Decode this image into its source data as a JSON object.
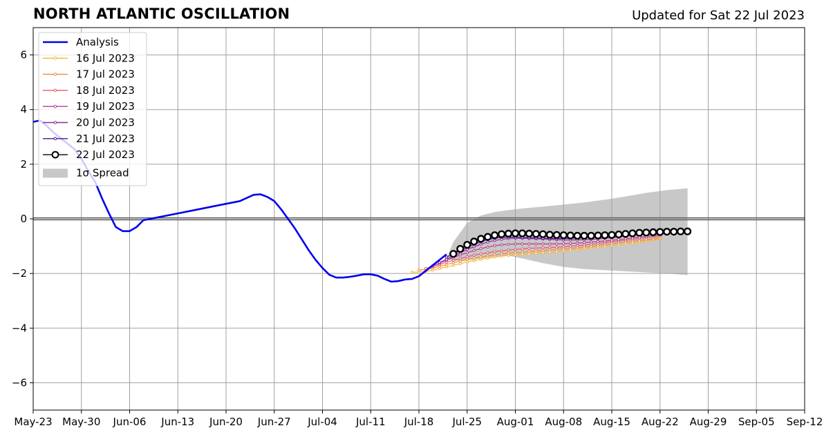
{
  "header": {
    "title": "NORTH ATLANTIC OSCILLATION",
    "subtitle": "Updated for Sat 22 Jul 2023"
  },
  "chart_data": {
    "type": "line",
    "title": "NORTH ATLANTIC OSCILLATION",
    "subtitle": "Updated for Sat 22 Jul 2023",
    "xlabel": "",
    "ylabel": "",
    "xlim": [
      "2023-05-23",
      "2023-09-12"
    ],
    "ylim": [
      -7,
      7
    ],
    "xticks": [
      "May-23",
      "May-30",
      "Jun-06",
      "Jun-13",
      "Jun-20",
      "Jun-27",
      "Jul-04",
      "Jul-11",
      "Jul-18",
      "Jul-25",
      "Aug-01",
      "Aug-08",
      "Aug-15",
      "Aug-22",
      "Aug-29",
      "Sep-05",
      "Sep-12"
    ],
    "yticks": [
      6,
      4,
      2,
      0,
      -2,
      -4,
      -6
    ],
    "ytick_labels": [
      "6",
      "4",
      "2",
      "0",
      "−2",
      "−4",
      "−6"
    ],
    "grid": true,
    "legend_position": "top-left",
    "colors": {
      "analysis": "#0000ee",
      "spread": "#c8c8c8",
      "grid": "#a0a0a0",
      "zero_line": "#555555"
    },
    "analysis": {
      "name": "Analysis",
      "color": "#0000ee",
      "x": [
        "2023-05-23",
        "2023-05-24",
        "2023-05-25",
        "2023-05-26",
        "2023-05-27",
        "2023-05-28",
        "2023-05-29",
        "2023-05-30",
        "2023-05-31",
        "2023-06-01",
        "2023-06-02",
        "2023-06-03",
        "2023-06-04",
        "2023-06-05",
        "2023-06-06",
        "2023-06-07",
        "2023-06-08",
        "2023-06-09",
        "2023-06-10",
        "2023-06-13",
        "2023-06-16",
        "2023-06-19",
        "2023-06-22",
        "2023-06-24",
        "2023-06-25",
        "2023-06-26",
        "2023-06-27",
        "2023-06-28",
        "2023-06-29",
        "2023-06-30",
        "2023-07-01",
        "2023-07-02",
        "2023-07-03",
        "2023-07-04",
        "2023-07-05",
        "2023-07-06",
        "2023-07-07",
        "2023-07-08",
        "2023-07-09",
        "2023-07-10",
        "2023-07-11",
        "2023-07-12",
        "2023-07-13",
        "2023-07-14",
        "2023-07-15",
        "2023-07-16",
        "2023-07-17",
        "2023-07-18",
        "2023-07-19",
        "2023-07-20",
        "2023-07-21",
        "2023-07-22"
      ],
      "y": [
        3.55,
        3.6,
        3.4,
        3.15,
        2.95,
        2.75,
        2.55,
        2.2,
        1.75,
        1.35,
        0.75,
        0.2,
        -0.3,
        -0.45,
        -0.45,
        -0.3,
        -0.05,
        0.0,
        0.05,
        0.2,
        0.35,
        0.5,
        0.65,
        0.88,
        0.9,
        0.8,
        0.65,
        0.35,
        0.0,
        -0.35,
        -0.75,
        -1.15,
        -1.5,
        -1.8,
        -2.05,
        -2.15,
        -2.15,
        -2.12,
        -2.08,
        -2.03,
        -2.03,
        -2.08,
        -2.2,
        -2.3,
        -2.28,
        -2.22,
        -2.2,
        -2.1,
        -1.9,
        -1.7,
        -1.5,
        -1.3
      ]
    },
    "forecasts": [
      {
        "name": "16 Jul 2023",
        "color": "#f5b732",
        "start": "2023-07-17",
        "y": [
          -1.95,
          -1.95,
          -1.92,
          -1.88,
          -1.82,
          -1.76,
          -1.7,
          -1.64,
          -1.58,
          -1.53,
          -1.48,
          -1.44,
          -1.4,
          -1.37,
          -1.34,
          -1.32,
          -1.3,
          -1.28,
          -1.26,
          -1.24,
          -1.22,
          -1.2,
          -1.17,
          -1.15,
          -1.12,
          -1.09,
          -1.06,
          -1.03,
          -1.0,
          -0.97,
          -0.94,
          -0.91,
          -0.88,
          -0.85,
          -0.81,
          -0.77,
          -0.73
        ]
      },
      {
        "name": "17 Jul 2023",
        "color": "#f08a3e",
        "start": "2023-07-18",
        "y": [
          -1.88,
          -1.85,
          -1.8,
          -1.74,
          -1.67,
          -1.61,
          -1.55,
          -1.49,
          -1.44,
          -1.4,
          -1.36,
          -1.32,
          -1.29,
          -1.26,
          -1.24,
          -1.22,
          -1.2,
          -1.18,
          -1.16,
          -1.14,
          -1.12,
          -1.1,
          -1.08,
          -1.06,
          -1.03,
          -1.0,
          -0.97,
          -0.94,
          -0.91,
          -0.88,
          -0.85,
          -0.82,
          -0.79,
          -0.76,
          -0.73,
          -0.7
        ]
      },
      {
        "name": "18 Jul 2023",
        "color": "#e05c6e",
        "start": "2023-07-19",
        "y": [
          -1.82,
          -1.75,
          -1.67,
          -1.59,
          -1.52,
          -1.45,
          -1.39,
          -1.33,
          -1.28,
          -1.24,
          -1.2,
          -1.17,
          -1.14,
          -1.12,
          -1.1,
          -1.08,
          -1.07,
          -1.06,
          -1.05,
          -1.04,
          -1.02,
          -1.0,
          -0.98,
          -0.96,
          -0.93,
          -0.9,
          -0.87,
          -0.84,
          -0.81,
          -0.78,
          -0.75,
          -0.72,
          -0.69,
          -0.66,
          -0.63
        ]
      },
      {
        "name": "19 Jul 2023",
        "color": "#b83a8e",
        "start": "2023-07-20",
        "y": [
          -1.72,
          -1.62,
          -1.52,
          -1.42,
          -1.32,
          -1.24,
          -1.16,
          -1.09,
          -1.03,
          -0.98,
          -0.95,
          -0.93,
          -0.92,
          -0.92,
          -0.92,
          -0.92,
          -0.92,
          -0.92,
          -0.92,
          -0.91,
          -0.9,
          -0.89,
          -0.87,
          -0.85,
          -0.83,
          -0.81,
          -0.78,
          -0.76,
          -0.73,
          -0.7,
          -0.67,
          -0.64,
          -0.61,
          -0.58
        ]
      },
      {
        "name": "20 Jul 2023",
        "color": "#8c2a96",
        "start": "2023-07-21",
        "y": [
          -1.6,
          -1.48,
          -1.36,
          -1.24,
          -1.12,
          -1.02,
          -0.93,
          -0.85,
          -0.79,
          -0.75,
          -0.72,
          -0.71,
          -0.71,
          -0.72,
          -0.73,
          -0.74,
          -0.75,
          -0.76,
          -0.77,
          -0.77,
          -0.77,
          -0.76,
          -0.75,
          -0.73,
          -0.71,
          -0.69,
          -0.66,
          -0.63,
          -0.6,
          -0.57,
          -0.54,
          -0.51,
          -0.48
        ]
      },
      {
        "name": "21 Jul 2023",
        "color": "#4a1490",
        "start": "2023-07-22",
        "y": [
          -1.4,
          -1.28,
          -1.16,
          -1.04,
          -0.93,
          -0.84,
          -0.76,
          -0.71,
          -0.68,
          -0.67,
          -0.67,
          -0.68,
          -0.69,
          -0.7,
          -0.71,
          -0.72,
          -0.72,
          -0.72,
          -0.71,
          -0.7,
          -0.69,
          -0.67,
          -0.65,
          -0.63,
          -0.61,
          -0.59,
          -0.57,
          -0.55,
          -0.53,
          -0.51,
          -0.5,
          -0.49
        ]
      },
      {
        "name": "22 Jul 2023",
        "color": "#000000",
        "start": "2023-07-23",
        "markers": "open-circle",
        "y": [
          -1.28,
          -1.1,
          -0.95,
          -0.83,
          -0.73,
          -0.66,
          -0.6,
          -0.56,
          -0.54,
          -0.53,
          -0.53,
          -0.54,
          -0.55,
          -0.56,
          -0.58,
          -0.59,
          -0.6,
          -0.61,
          -0.62,
          -0.62,
          -0.62,
          -0.61,
          -0.6,
          -0.59,
          -0.57,
          -0.55,
          -0.53,
          -0.51,
          -0.5,
          -0.49,
          -0.48,
          -0.47,
          -0.47,
          -0.46,
          -0.46
        ]
      }
    ],
    "spread": {
      "name": "1σ Spread",
      "color": "#c8c8c8",
      "x": [
        "2023-07-22",
        "2023-07-23",
        "2023-07-25",
        "2023-07-27",
        "2023-07-29",
        "2023-07-31",
        "2023-08-02",
        "2023-08-05",
        "2023-08-08",
        "2023-08-11",
        "2023-08-14",
        "2023-08-17",
        "2023-08-20",
        "2023-08-23",
        "2023-08-26"
      ],
      "upper": [
        -1.45,
        -0.85,
        -0.15,
        0.12,
        0.25,
        0.32,
        0.38,
        0.45,
        0.52,
        0.6,
        0.7,
        0.82,
        0.95,
        1.05,
        1.12
      ],
      "lower": [
        -1.45,
        -1.55,
        -1.52,
        -1.45,
        -1.38,
        -1.35,
        -1.45,
        -1.62,
        -1.76,
        -1.84,
        -1.88,
        -1.92,
        -1.96,
        -2.0,
        -2.06
      ]
    },
    "legend": [
      "Analysis",
      "16 Jul 2023",
      "17 Jul 2023",
      "18 Jul 2023",
      "19 Jul 2023",
      "20 Jul 2023",
      "21 Jul 2023",
      "22 Jul 2023",
      "1σ Spread"
    ]
  }
}
